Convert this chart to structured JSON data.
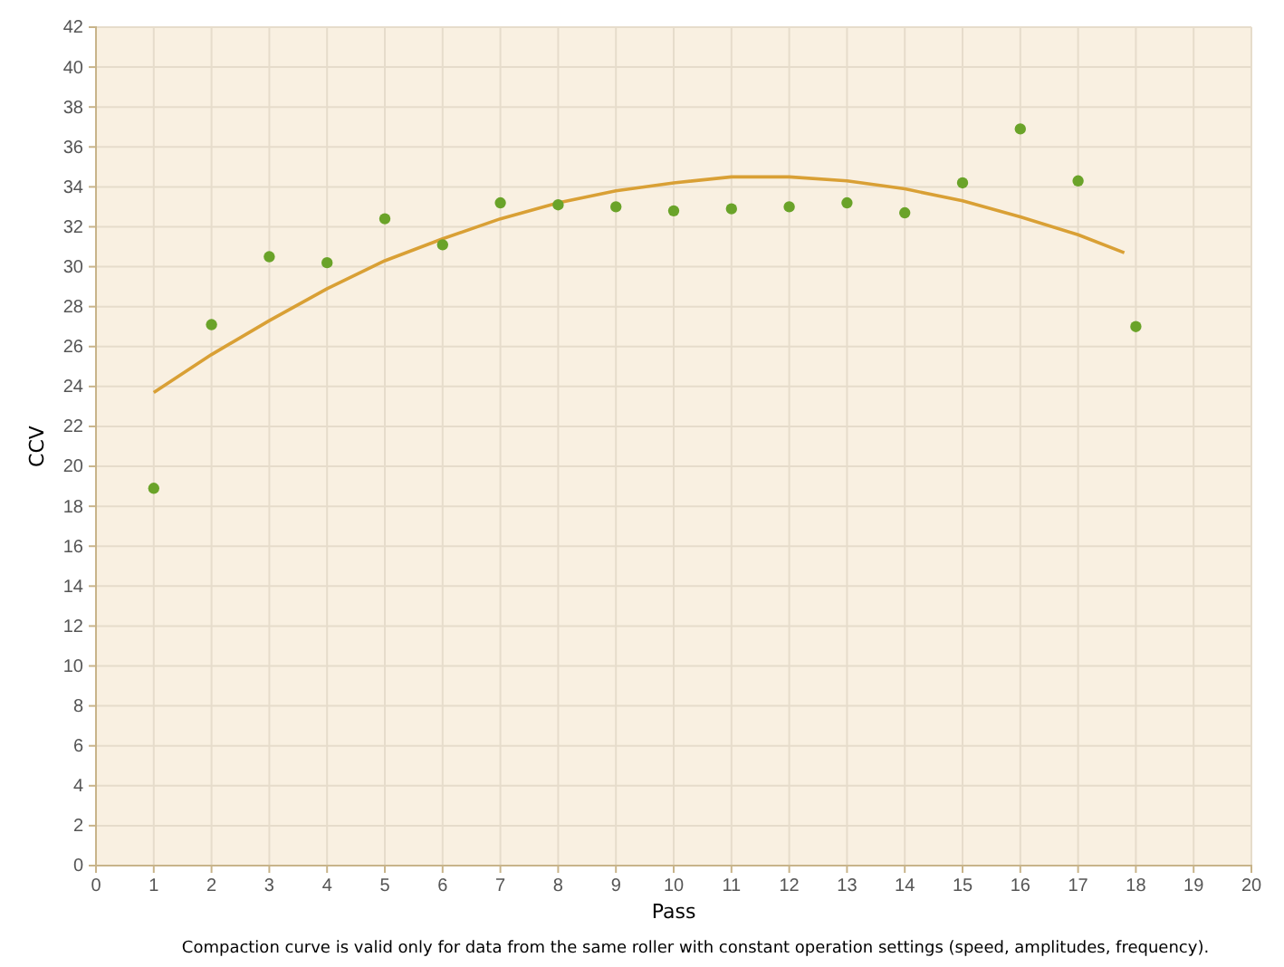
{
  "chart_data": {
    "type": "scatter",
    "xlabel": "Pass",
    "ylabel": "CCV",
    "annotations": [
      "Compaction curve is valid only for data from the same roller with constant operation settings (speed, amplitudes, frequency)."
    ],
    "x": [
      1,
      2,
      3,
      4,
      5,
      6,
      7,
      8,
      9,
      10,
      11,
      12,
      13,
      14,
      15,
      16,
      17,
      18
    ],
    "series": [
      {
        "color": "#6aa329",
        "marker": "circle",
        "values": [
          18.9,
          27.1,
          30.5,
          30.2,
          32.4,
          31.1,
          33.2,
          33.1,
          33.0,
          32.8,
          32.9,
          33.0,
          33.2,
          32.7,
          34.2,
          36.9,
          34.3,
          27.0
        ]
      },
      {
        "type": "line",
        "marker": "none",
        "color": "#d9a035",
        "x": [
          1,
          2,
          3,
          4,
          5,
          6,
          7,
          8,
          9,
          10,
          11,
          12,
          13,
          14,
          15,
          16,
          17,
          17.8
        ],
        "values": [
          23.7,
          25.6,
          27.3,
          28.9,
          30.3,
          31.4,
          32.4,
          33.2,
          33.8,
          34.2,
          34.5,
          34.5,
          34.3,
          33.9,
          33.3,
          32.5,
          31.6,
          30.7
        ]
      }
    ],
    "xlim": [
      0,
      20
    ],
    "xticks": [
      0,
      1,
      2,
      3,
      4,
      5,
      6,
      7,
      8,
      9,
      10,
      11,
      12,
      13,
      14,
      15,
      16,
      17,
      18,
      19,
      20
    ],
    "ylim": [
      0,
      42
    ],
    "yticks": [
      0,
      2,
      4,
      6,
      8,
      10,
      12,
      14,
      16,
      18,
      20,
      22,
      24,
      26,
      28,
      30,
      32,
      34,
      36,
      38,
      40,
      42
    ],
    "grid": true
  }
}
